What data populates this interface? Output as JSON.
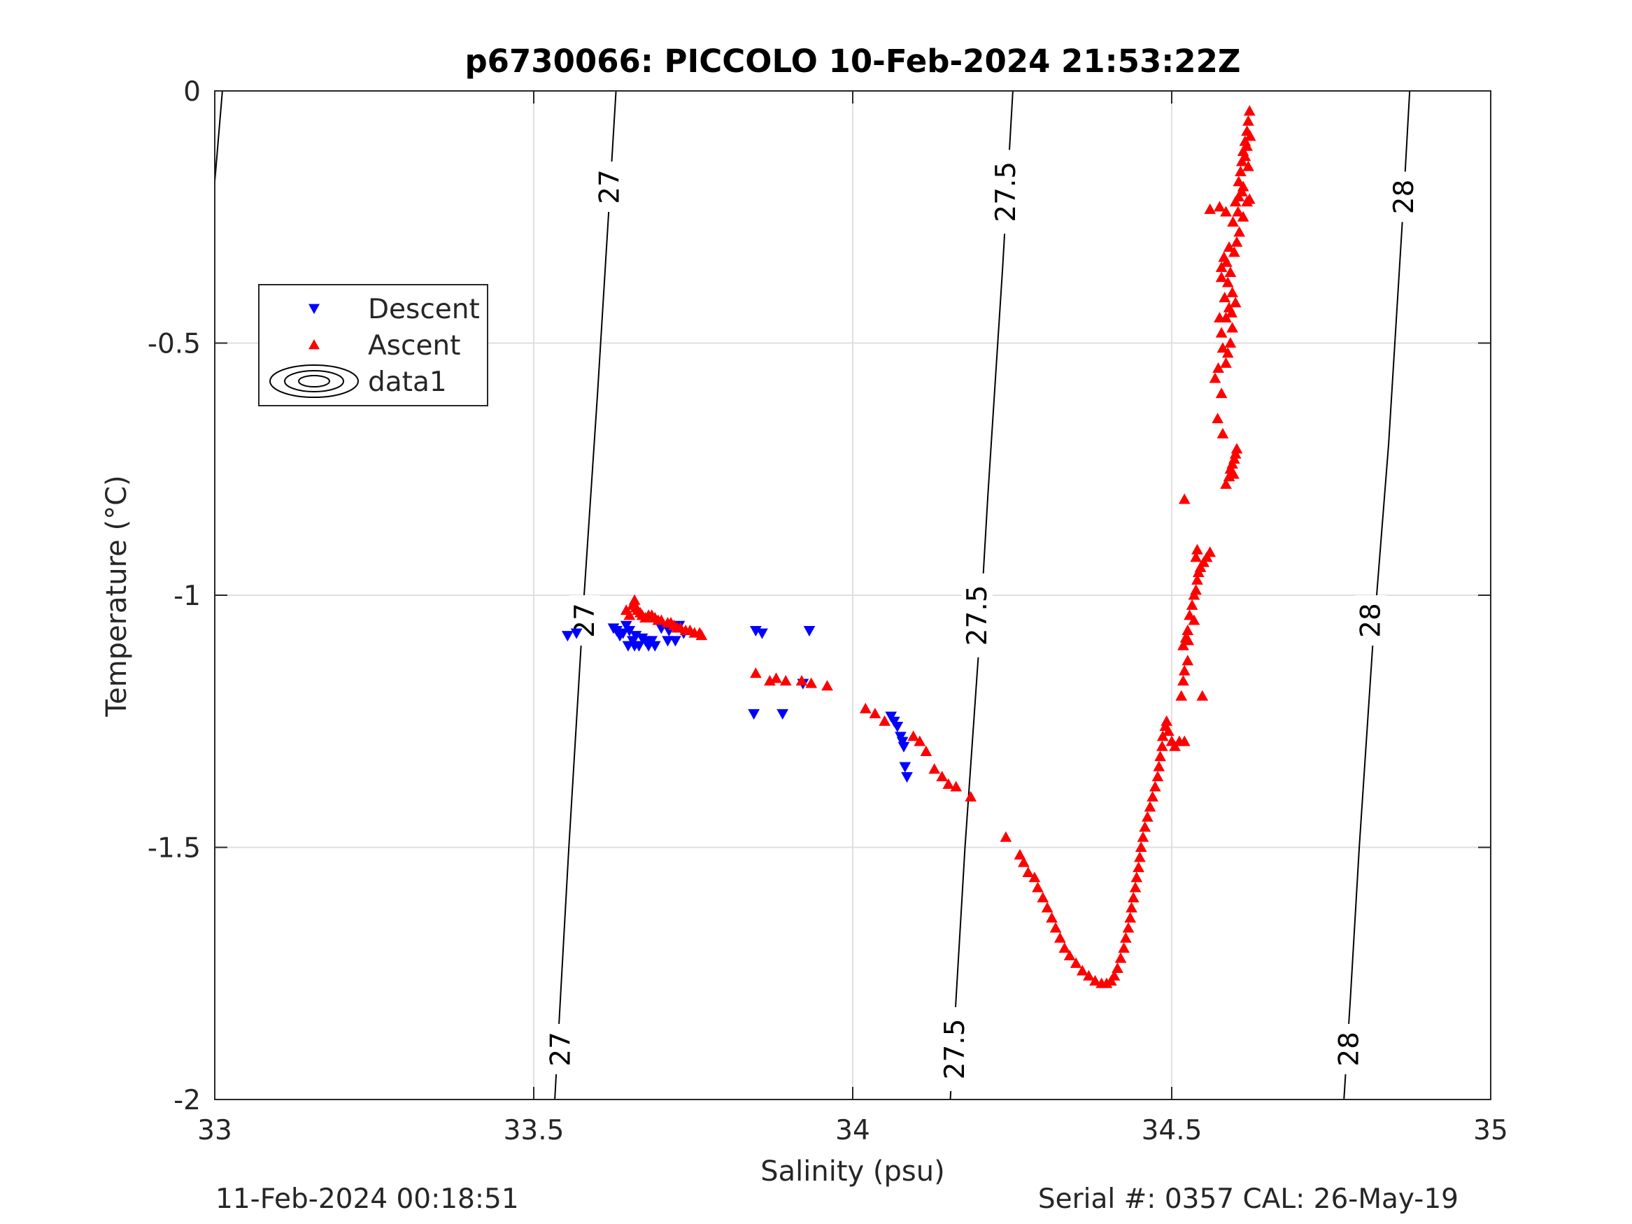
{
  "chart_data": {
    "type": "scatter",
    "title": "p6730066: PICCOLO 10-Feb-2024 21:53:22Z",
    "xlabel": "Salinity (psu)",
    "ylabel": "Temperature (°C)",
    "xlim": [
      33,
      35
    ],
    "ylim": [
      -2,
      0
    ],
    "x_ticks": [
      33,
      33.5,
      34,
      34.5,
      35
    ],
    "x_tick_labels": [
      "33",
      "33.5",
      "34",
      "34.5",
      "35"
    ],
    "y_ticks": [
      0,
      -0.5,
      -1,
      -1.5,
      -2
    ],
    "y_tick_labels": [
      "0",
      "-0.5",
      "-1",
      "-1.5",
      "-2"
    ],
    "grid": true,
    "legend_position": "upper-left",
    "colors": {
      "descent": "#0000ff",
      "ascent": "#ff0000",
      "contour": "#000000",
      "grid": "#dfdfdf",
      "axis": "#262626"
    },
    "series": [
      {
        "name": "Descent",
        "marker": "triangle-down",
        "color": "#0000ff",
        "points": [
          [
            33.553,
            -1.08
          ],
          [
            33.567,
            -1.075
          ],
          [
            33.625,
            -1.065
          ],
          [
            33.63,
            -1.07
          ],
          [
            33.635,
            -1.08
          ],
          [
            33.64,
            -1.075
          ],
          [
            33.645,
            -1.06
          ],
          [
            33.65,
            -1.07
          ],
          [
            33.655,
            -1.09
          ],
          [
            33.66,
            -1.08
          ],
          [
            33.665,
            -1.1
          ],
          [
            33.67,
            -1.085
          ],
          [
            33.675,
            -1.09
          ],
          [
            33.68,
            -1.1
          ],
          [
            33.685,
            -1.09
          ],
          [
            33.69,
            -1.1
          ],
          [
            33.7,
            -1.065
          ],
          [
            33.712,
            -1.07
          ],
          [
            33.71,
            -1.09
          ],
          [
            33.722,
            -1.09
          ],
          [
            33.728,
            -1.06
          ],
          [
            33.735,
            -1.075
          ],
          [
            33.648,
            -1.1
          ],
          [
            33.658,
            -1.1
          ],
          [
            33.848,
            -1.07
          ],
          [
            33.858,
            -1.075
          ],
          [
            33.932,
            -1.07
          ],
          [
            33.845,
            -1.235
          ],
          [
            33.89,
            -1.235
          ],
          [
            33.922,
            -1.175
          ],
          [
            34.06,
            -1.24
          ],
          [
            34.065,
            -1.25
          ],
          [
            34.07,
            -1.26
          ],
          [
            34.075,
            -1.28
          ],
          [
            34.08,
            -1.3
          ],
          [
            34.078,
            -1.29
          ],
          [
            34.082,
            -1.34
          ],
          [
            34.085,
            -1.36
          ]
        ]
      },
      {
        "name": "Ascent",
        "marker": "triangle-up",
        "color": "#ff0000",
        "points": [
          [
            33.655,
            -1.02
          ],
          [
            33.658,
            -1.01
          ],
          [
            33.66,
            -1.025
          ],
          [
            33.663,
            -1.03
          ],
          [
            33.667,
            -1.035
          ],
          [
            33.67,
            -1.04
          ],
          [
            33.675,
            -1.045
          ],
          [
            33.68,
            -1.04
          ],
          [
            33.685,
            -1.04
          ],
          [
            33.69,
            -1.045
          ],
          [
            33.695,
            -1.05
          ],
          [
            33.7,
            -1.05
          ],
          [
            33.71,
            -1.055
          ],
          [
            33.715,
            -1.055
          ],
          [
            33.72,
            -1.06
          ],
          [
            33.725,
            -1.065
          ],
          [
            33.73,
            -1.065
          ],
          [
            33.738,
            -1.07
          ],
          [
            33.745,
            -1.07
          ],
          [
            33.752,
            -1.075
          ],
          [
            33.76,
            -1.075
          ],
          [
            33.763,
            -1.08
          ],
          [
            33.645,
            -1.03
          ],
          [
            33.65,
            -1.04
          ],
          [
            33.848,
            -1.155
          ],
          [
            33.87,
            -1.17
          ],
          [
            33.88,
            -1.165
          ],
          [
            33.895,
            -1.17
          ],
          [
            33.92,
            -1.17
          ],
          [
            33.935,
            -1.175
          ],
          [
            33.96,
            -1.18
          ],
          [
            34.02,
            -1.225
          ],
          [
            34.035,
            -1.235
          ],
          [
            34.05,
            -1.25
          ],
          [
            34.095,
            -1.28
          ],
          [
            34.105,
            -1.29
          ],
          [
            34.115,
            -1.31
          ],
          [
            34.128,
            -1.345
          ],
          [
            34.14,
            -1.36
          ],
          [
            34.15,
            -1.375
          ],
          [
            34.162,
            -1.38
          ],
          [
            34.185,
            -1.4
          ],
          [
            34.24,
            -1.48
          ],
          [
            34.262,
            -1.515
          ],
          [
            34.268,
            -1.53
          ],
          [
            34.275,
            -1.55
          ],
          [
            34.285,
            -1.56
          ],
          [
            34.29,
            -1.58
          ],
          [
            34.298,
            -1.6
          ],
          [
            34.305,
            -1.62
          ],
          [
            34.312,
            -1.64
          ],
          [
            34.318,
            -1.66
          ],
          [
            34.325,
            -1.68
          ],
          [
            34.332,
            -1.7
          ],
          [
            34.34,
            -1.715
          ],
          [
            34.35,
            -1.73
          ],
          [
            34.36,
            -1.745
          ],
          [
            34.37,
            -1.755
          ],
          [
            34.38,
            -1.765
          ],
          [
            34.39,
            -1.77
          ],
          [
            34.398,
            -1.77
          ],
          [
            34.405,
            -1.765
          ],
          [
            34.41,
            -1.755
          ],
          [
            34.415,
            -1.74
          ],
          [
            34.42,
            -1.72
          ],
          [
            34.425,
            -1.7
          ],
          [
            34.428,
            -1.68
          ],
          [
            34.432,
            -1.66
          ],
          [
            34.435,
            -1.64
          ],
          [
            34.437,
            -1.62
          ],
          [
            34.44,
            -1.6
          ],
          [
            34.443,
            -1.58
          ],
          [
            34.445,
            -1.56
          ],
          [
            34.448,
            -1.54
          ],
          [
            34.45,
            -1.52
          ],
          [
            34.452,
            -1.5
          ],
          [
            34.455,
            -1.48
          ],
          [
            34.458,
            -1.46
          ],
          [
            34.462,
            -1.44
          ],
          [
            34.466,
            -1.42
          ],
          [
            34.47,
            -1.4
          ],
          [
            34.474,
            -1.38
          ],
          [
            34.478,
            -1.36
          ],
          [
            34.48,
            -1.34
          ],
          [
            34.482,
            -1.32
          ],
          [
            34.485,
            -1.3
          ],
          [
            34.486,
            -1.28
          ],
          [
            34.49,
            -1.26
          ],
          [
            34.492,
            -1.25
          ],
          [
            34.495,
            -1.27
          ],
          [
            34.5,
            -1.29
          ],
          [
            34.505,
            -1.3
          ],
          [
            34.512,
            -1.29
          ],
          [
            34.52,
            -1.29
          ],
          [
            34.515,
            -1.2
          ],
          [
            34.518,
            -1.17
          ],
          [
            34.52,
            -1.15
          ],
          [
            34.525,
            -1.13
          ],
          [
            34.518,
            -1.1
          ],
          [
            34.522,
            -1.085
          ],
          [
            34.526,
            -1.09
          ],
          [
            34.525,
            -1.07
          ],
          [
            34.528,
            -1.04
          ],
          [
            34.532,
            -1.02
          ],
          [
            34.535,
            -1.0
          ],
          [
            34.538,
            -0.99
          ],
          [
            34.54,
            -0.97
          ],
          [
            34.542,
            -0.955
          ],
          [
            34.545,
            -0.945
          ],
          [
            34.55,
            -0.935
          ],
          [
            34.555,
            -0.925
          ],
          [
            34.538,
            -0.925
          ],
          [
            34.54,
            -0.91
          ],
          [
            34.56,
            -0.915
          ],
          [
            34.535,
            -1.05
          ],
          [
            34.548,
            -1.2
          ],
          [
            34.52,
            -0.81
          ],
          [
            34.585,
            -0.78
          ],
          [
            34.59,
            -0.765
          ],
          [
            34.592,
            -0.75
          ],
          [
            34.595,
            -0.74
          ],
          [
            34.598,
            -0.73
          ],
          [
            34.6,
            -0.72
          ],
          [
            34.602,
            -0.71
          ],
          [
            34.597,
            -0.76
          ],
          [
            34.58,
            -0.68
          ],
          [
            34.572,
            -0.65
          ],
          [
            34.578,
            -0.6
          ],
          [
            34.568,
            -0.57
          ],
          [
            34.573,
            -0.55
          ],
          [
            34.585,
            -0.54
          ],
          [
            34.588,
            -0.52
          ],
          [
            34.58,
            -0.51
          ],
          [
            34.592,
            -0.5
          ],
          [
            34.578,
            -0.48
          ],
          [
            34.595,
            -0.47
          ],
          [
            34.585,
            -0.45
          ],
          [
            34.59,
            -0.43
          ],
          [
            34.583,
            -0.41
          ],
          [
            34.595,
            -0.4
          ],
          [
            34.588,
            -0.38
          ],
          [
            34.578,
            -0.37
          ],
          [
            34.592,
            -0.36
          ],
          [
            34.586,
            -0.34
          ],
          [
            34.598,
            -0.32
          ],
          [
            34.582,
            -0.33
          ],
          [
            34.59,
            -0.31
          ],
          [
            34.602,
            -0.3
          ],
          [
            34.606,
            -0.28
          ],
          [
            34.575,
            -0.45
          ],
          [
            34.578,
            -0.35
          ],
          [
            34.594,
            -0.44
          ],
          [
            34.6,
            -0.42
          ],
          [
            34.596,
            -0.26
          ],
          [
            34.604,
            -0.24
          ],
          [
            34.612,
            -0.25
          ],
          [
            34.56,
            -0.235
          ],
          [
            34.575,
            -0.23
          ],
          [
            34.585,
            -0.24
          ],
          [
            34.6,
            -0.22
          ],
          [
            34.605,
            -0.21
          ],
          [
            34.61,
            -0.2
          ],
          [
            34.612,
            -0.19
          ],
          [
            34.618,
            -0.22
          ],
          [
            34.622,
            -0.215
          ],
          [
            34.605,
            -0.18
          ],
          [
            34.608,
            -0.16
          ],
          [
            34.61,
            -0.14
          ],
          [
            34.612,
            -0.12
          ],
          [
            34.615,
            -0.1
          ],
          [
            34.618,
            -0.08
          ],
          [
            34.62,
            -0.06
          ],
          [
            34.622,
            -0.04
          ],
          [
            34.615,
            -0.13
          ],
          [
            34.62,
            -0.15
          ],
          [
            34.618,
            -0.11
          ],
          [
            34.623,
            -0.09
          ]
        ]
      }
    ],
    "contours": {
      "name": "data1",
      "lines": [
        {
          "label": "27",
          "points": [
            [
              33.629,
              0
            ],
            [
              33.617,
              -0.25
            ],
            [
              33.6,
              -0.6
            ],
            [
              33.579,
              -1.0
            ],
            [
              33.567,
              -1.25
            ],
            [
              33.555,
              -1.5
            ],
            [
              33.544,
              -1.75
            ],
            [
              33.533,
              -2
            ]
          ],
          "label_positions": [
            [
              33.619,
              -0.19
            ],
            [
              33.58,
              -1.05
            ],
            [
              33.542,
              -1.9
            ]
          ]
        },
        {
          "label": "27.5",
          "points": [
            [
              34.251,
              0
            ],
            [
              34.235,
              -0.35
            ],
            [
              34.212,
              -0.8
            ],
            [
              34.198,
              -1.1
            ],
            [
              34.176,
              -1.5
            ],
            [
              34.162,
              -1.8
            ],
            [
              34.153,
              -2
            ]
          ],
          "label_positions": [
            [
              34.24,
              -0.2
            ],
            [
              34.195,
              -1.04
            ],
            [
              34.16,
              -1.9
            ]
          ]
        },
        {
          "label": "28",
          "points": [
            [
              34.873,
              0
            ],
            [
              34.862,
              -0.25
            ],
            [
              34.84,
              -0.7
            ],
            [
              34.815,
              -1.1
            ],
            [
              34.794,
              -1.5
            ],
            [
              34.78,
              -1.8
            ],
            [
              34.77,
              -2
            ]
          ],
          "label_positions": [
            [
              34.864,
              -0.21
            ],
            [
              34.812,
              -1.05
            ],
            [
              34.778,
              -1.9
            ]
          ]
        },
        {
          "label": "",
          "points": [
            [
              33.012,
              0
            ],
            [
              33.0,
              -0.18
            ]
          ],
          "label_positions": []
        }
      ]
    },
    "legend": [
      {
        "label": "Descent",
        "symbol": "triangle-down"
      },
      {
        "label": "Ascent",
        "symbol": "triangle-up"
      },
      {
        "label": "data1",
        "symbol": "contour"
      }
    ]
  },
  "footer": {
    "left": "11-Feb-2024 00:18:51",
    "right": "Serial #: 0357  CAL: 26-May-19"
  }
}
